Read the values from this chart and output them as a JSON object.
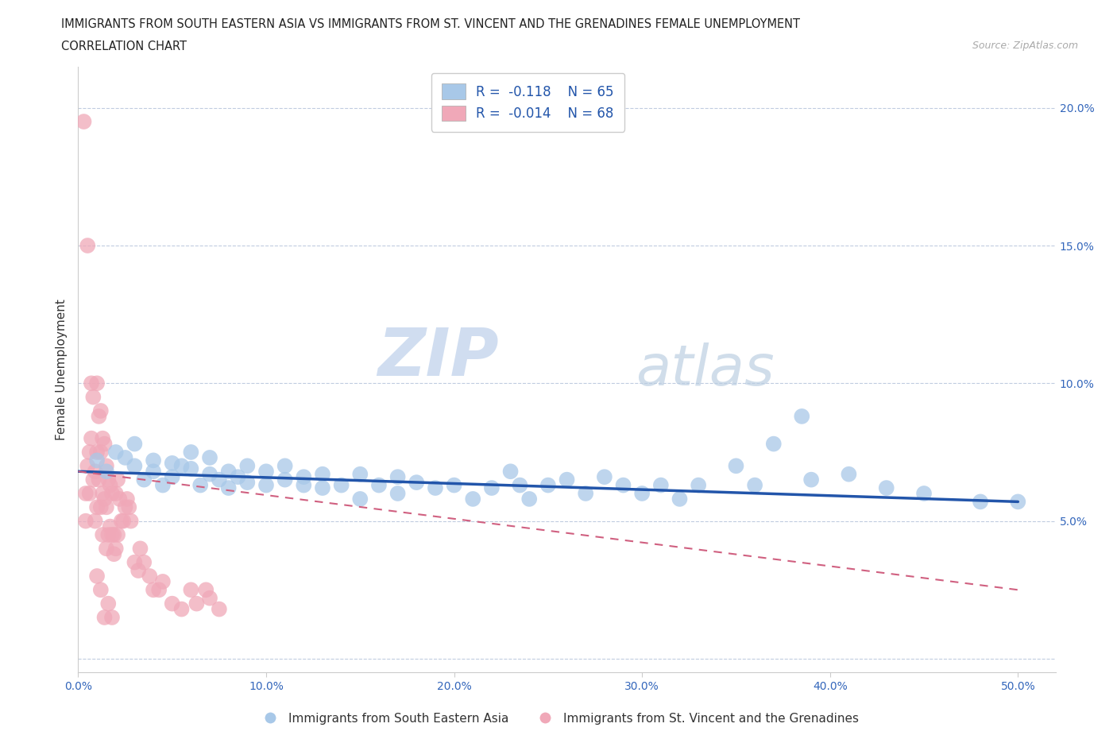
{
  "title_line1": "IMMIGRANTS FROM SOUTH EASTERN ASIA VS IMMIGRANTS FROM ST. VINCENT AND THE GRENADINES FEMALE UNEMPLOYMENT",
  "title_line2": "CORRELATION CHART",
  "source_text": "Source: ZipAtlas.com",
  "ylabel": "Female Unemployment",
  "xlim": [
    0.0,
    0.52
  ],
  "ylim": [
    -0.005,
    0.215
  ],
  "xticks": [
    0.0,
    0.1,
    0.2,
    0.3,
    0.4,
    0.5
  ],
  "xticklabels": [
    "0.0%",
    "10.0%",
    "20.0%",
    "30.0%",
    "40.0%",
    "50.0%"
  ],
  "yticks_right": [
    0.05,
    0.1,
    0.15,
    0.2
  ],
  "yticklabels_right": [
    "5.0%",
    "10.0%",
    "15.0%",
    "20.0%"
  ],
  "blue_color": "#a8c8e8",
  "pink_color": "#f0a8b8",
  "blue_line_color": "#2255aa",
  "pink_line_color": "#d06080",
  "grid_color": "#c0cce0",
  "background_color": "#ffffff",
  "watermark_zip": "ZIP",
  "watermark_atlas": "atlas",
  "r_blue": -0.118,
  "n_blue": 65,
  "r_pink": -0.014,
  "n_pink": 68,
  "legend_label_blue": "Immigrants from South Eastern Asia",
  "legend_label_pink": "Immigrants from St. Vincent and the Grenadines",
  "blue_scatter_x": [
    0.01,
    0.015,
    0.02,
    0.025,
    0.03,
    0.03,
    0.035,
    0.04,
    0.04,
    0.045,
    0.05,
    0.05,
    0.055,
    0.06,
    0.06,
    0.065,
    0.07,
    0.07,
    0.075,
    0.08,
    0.08,
    0.085,
    0.09,
    0.09,
    0.1,
    0.1,
    0.11,
    0.11,
    0.12,
    0.12,
    0.13,
    0.13,
    0.14,
    0.15,
    0.15,
    0.16,
    0.17,
    0.17,
    0.18,
    0.19,
    0.2,
    0.21,
    0.22,
    0.23,
    0.235,
    0.24,
    0.25,
    0.26,
    0.27,
    0.28,
    0.29,
    0.3,
    0.31,
    0.32,
    0.33,
    0.35,
    0.36,
    0.37,
    0.385,
    0.39,
    0.41,
    0.43,
    0.45,
    0.48,
    0.5
  ],
  "blue_scatter_y": [
    0.072,
    0.068,
    0.075,
    0.073,
    0.07,
    0.078,
    0.065,
    0.072,
    0.068,
    0.063,
    0.071,
    0.066,
    0.07,
    0.075,
    0.069,
    0.063,
    0.067,
    0.073,
    0.065,
    0.068,
    0.062,
    0.066,
    0.07,
    0.064,
    0.068,
    0.063,
    0.065,
    0.07,
    0.066,
    0.063,
    0.067,
    0.062,
    0.063,
    0.067,
    0.058,
    0.063,
    0.066,
    0.06,
    0.064,
    0.062,
    0.063,
    0.058,
    0.062,
    0.068,
    0.063,
    0.058,
    0.063,
    0.065,
    0.06,
    0.066,
    0.063,
    0.06,
    0.063,
    0.058,
    0.063,
    0.07,
    0.063,
    0.078,
    0.088,
    0.065,
    0.067,
    0.062,
    0.06,
    0.057,
    0.057
  ],
  "pink_scatter_x": [
    0.003,
    0.004,
    0.004,
    0.005,
    0.005,
    0.006,
    0.006,
    0.007,
    0.007,
    0.008,
    0.008,
    0.009,
    0.009,
    0.01,
    0.01,
    0.01,
    0.011,
    0.011,
    0.012,
    0.012,
    0.012,
    0.013,
    0.013,
    0.013,
    0.014,
    0.014,
    0.015,
    0.015,
    0.015,
    0.016,
    0.016,
    0.017,
    0.017,
    0.018,
    0.018,
    0.019,
    0.019,
    0.02,
    0.02,
    0.021,
    0.021,
    0.022,
    0.023,
    0.024,
    0.025,
    0.026,
    0.027,
    0.028,
    0.03,
    0.032,
    0.033,
    0.035,
    0.038,
    0.04,
    0.043,
    0.045,
    0.05,
    0.055,
    0.06,
    0.063,
    0.068,
    0.07,
    0.075,
    0.01,
    0.012,
    0.014,
    0.016,
    0.018
  ],
  "pink_scatter_y": [
    0.195,
    0.06,
    0.05,
    0.15,
    0.07,
    0.075,
    0.06,
    0.1,
    0.08,
    0.095,
    0.065,
    0.068,
    0.05,
    0.1,
    0.075,
    0.055,
    0.088,
    0.065,
    0.09,
    0.075,
    0.055,
    0.08,
    0.06,
    0.045,
    0.078,
    0.058,
    0.07,
    0.055,
    0.04,
    0.065,
    0.045,
    0.063,
    0.048,
    0.06,
    0.045,
    0.045,
    0.038,
    0.06,
    0.04,
    0.065,
    0.045,
    0.058,
    0.05,
    0.05,
    0.055,
    0.058,
    0.055,
    0.05,
    0.035,
    0.032,
    0.04,
    0.035,
    0.03,
    0.025,
    0.025,
    0.028,
    0.02,
    0.018,
    0.025,
    0.02,
    0.025,
    0.022,
    0.018,
    0.03,
    0.025,
    0.015,
    0.02,
    0.015
  ]
}
